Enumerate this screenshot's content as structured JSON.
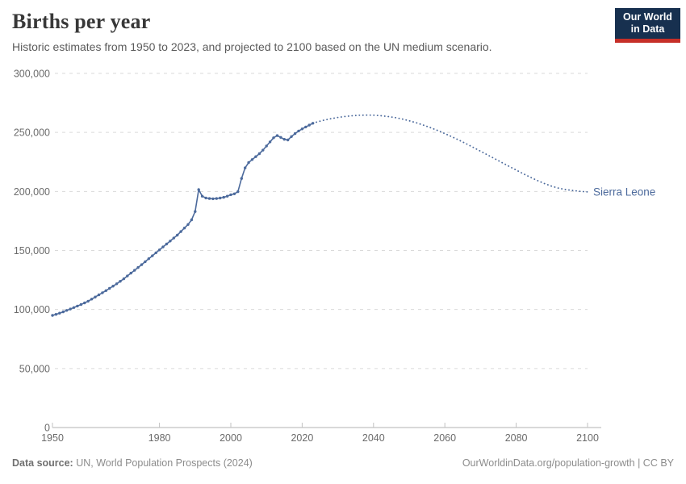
{
  "header": {
    "title": "Births per year",
    "subtitle": "Historic estimates from 1950 to 2023, and projected to 2100 based on the UN medium scenario."
  },
  "logo": {
    "line1": "Our World",
    "line2": "in Data"
  },
  "chart_data": {
    "type": "line",
    "title": "Births per year",
    "entity_label": "Sierra Leone",
    "xlabel": "",
    "ylabel": "",
    "xlim": [
      1950,
      2100
    ],
    "ylim": [
      0,
      300000
    ],
    "grid": "horizontal-dashed",
    "legend_position": "end-of-line-label",
    "line_color": "#4c6a9c",
    "x_ticks": [
      {
        "value": 1950,
        "label": "1950"
      },
      {
        "value": 1980,
        "label": "1980"
      },
      {
        "value": 2000,
        "label": "2000"
      },
      {
        "value": 2020,
        "label": "2020"
      },
      {
        "value": 2040,
        "label": "2040"
      },
      {
        "value": 2060,
        "label": "2060"
      },
      {
        "value": 2080,
        "label": "2080"
      },
      {
        "value": 2100,
        "label": "2100"
      }
    ],
    "y_ticks": [
      {
        "value": 0,
        "label": "0"
      },
      {
        "value": 50000,
        "label": "50,000"
      },
      {
        "value": 100000,
        "label": "100,000"
      },
      {
        "value": 150000,
        "label": "150,000"
      },
      {
        "value": 200000,
        "label": "200,000"
      },
      {
        "value": 250000,
        "label": "250,000"
      },
      {
        "value": 300000,
        "label": "300,000"
      }
    ],
    "series": [
      {
        "name": "Sierra Leone — historic estimates (1950–2023)",
        "style": "solid-with-markers",
        "points": [
          [
            1950,
            95000
          ],
          [
            1951,
            95900
          ],
          [
            1952,
            96900
          ],
          [
            1953,
            98000
          ],
          [
            1954,
            99200
          ],
          [
            1955,
            100400
          ],
          [
            1956,
            101600
          ],
          [
            1957,
            102900
          ],
          [
            1958,
            104200
          ],
          [
            1959,
            105600
          ],
          [
            1960,
            107000
          ],
          [
            1961,
            108800
          ],
          [
            1962,
            110600
          ],
          [
            1963,
            112400
          ],
          [
            1964,
            114200
          ],
          [
            1965,
            116000
          ],
          [
            1966,
            117900
          ],
          [
            1967,
            119800
          ],
          [
            1968,
            121800
          ],
          [
            1969,
            123900
          ],
          [
            1970,
            126000
          ],
          [
            1971,
            128400
          ],
          [
            1972,
            130800
          ],
          [
            1973,
            133200
          ],
          [
            1974,
            135600
          ],
          [
            1975,
            138000
          ],
          [
            1976,
            140500
          ],
          [
            1977,
            143000
          ],
          [
            1978,
            145500
          ],
          [
            1979,
            148000
          ],
          [
            1980,
            150500
          ],
          [
            1981,
            153000
          ],
          [
            1982,
            155500
          ],
          [
            1983,
            158000
          ],
          [
            1984,
            160500
          ],
          [
            1985,
            163000
          ],
          [
            1986,
            166000
          ],
          [
            1987,
            169000
          ],
          [
            1988,
            172000
          ],
          [
            1989,
            176000
          ],
          [
            1990,
            183000
          ],
          [
            1991,
            201500
          ],
          [
            1992,
            196000
          ],
          [
            1993,
            194500
          ],
          [
            1994,
            194000
          ],
          [
            1995,
            193800
          ],
          [
            1996,
            194000
          ],
          [
            1997,
            194400
          ],
          [
            1998,
            195000
          ],
          [
            1999,
            196000
          ],
          [
            2000,
            197200
          ],
          [
            2001,
            198000
          ],
          [
            2002,
            199800
          ],
          [
            2003,
            211000
          ],
          [
            2004,
            220000
          ],
          [
            2005,
            224500
          ],
          [
            2006,
            227000
          ],
          [
            2007,
            229500
          ],
          [
            2008,
            232000
          ],
          [
            2009,
            235000
          ],
          [
            2010,
            238500
          ],
          [
            2011,
            242000
          ],
          [
            2012,
            245500
          ],
          [
            2013,
            247300
          ],
          [
            2014,
            245800
          ],
          [
            2015,
            244200
          ],
          [
            2016,
            243600
          ],
          [
            2017,
            246500
          ],
          [
            2018,
            249000
          ],
          [
            2019,
            251200
          ],
          [
            2020,
            253000
          ],
          [
            2021,
            254600
          ],
          [
            2022,
            256200
          ],
          [
            2023,
            257800
          ]
        ]
      },
      {
        "name": "Sierra Leone — projected, UN medium scenario (2023–2100)",
        "style": "dotted",
        "points": [
          [
            2023,
            257800
          ],
          [
            2024,
            258700
          ],
          [
            2026,
            260300
          ],
          [
            2028,
            261600
          ],
          [
            2030,
            262700
          ],
          [
            2032,
            263500
          ],
          [
            2034,
            264100
          ],
          [
            2036,
            264500
          ],
          [
            2038,
            264700
          ],
          [
            2040,
            264600
          ],
          [
            2042,
            264200
          ],
          [
            2044,
            263500
          ],
          [
            2046,
            262600
          ],
          [
            2048,
            261400
          ],
          [
            2050,
            259900
          ],
          [
            2052,
            258200
          ],
          [
            2054,
            256200
          ],
          [
            2056,
            254000
          ],
          [
            2058,
            251600
          ],
          [
            2060,
            249000
          ],
          [
            2062,
            246300
          ],
          [
            2064,
            243400
          ],
          [
            2066,
            240400
          ],
          [
            2068,
            237300
          ],
          [
            2070,
            234100
          ],
          [
            2072,
            230900
          ],
          [
            2074,
            227700
          ],
          [
            2076,
            224500
          ],
          [
            2078,
            221300
          ],
          [
            2080,
            218100
          ],
          [
            2082,
            215000
          ],
          [
            2084,
            212000
          ],
          [
            2086,
            209200
          ],
          [
            2088,
            206600
          ],
          [
            2090,
            204400
          ],
          [
            2092,
            202700
          ],
          [
            2094,
            201500
          ],
          [
            2096,
            200800
          ],
          [
            2098,
            200100
          ],
          [
            2100,
            199600
          ]
        ]
      }
    ]
  },
  "footer": {
    "datasource_label": "Data source:",
    "datasource_value": " UN, World Population Prospects (2024)",
    "credit": "OurWorldinData.org/population-growth | CC BY"
  }
}
